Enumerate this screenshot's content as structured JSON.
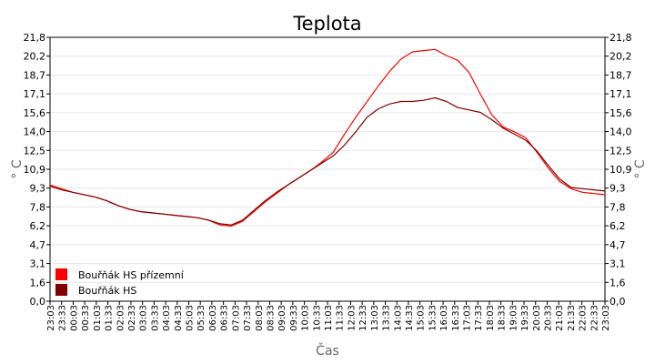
{
  "chart_data": {
    "type": "line",
    "title": "Teplota",
    "xlabel": "Čas",
    "ylabel": "° C",
    "ylabel_right": "° C",
    "ylim": [
      0,
      21.8
    ],
    "yticks": [
      "0,0",
      "1,6",
      "3,1",
      "4,7",
      "6,2",
      "7,8",
      "9,3",
      "10,9",
      "12,5",
      "14,0",
      "15,6",
      "17,1",
      "18,7",
      "20,2",
      "21,8"
    ],
    "xticks": [
      "23:03",
      "23:33",
      "00:03",
      "00:33",
      "01:03",
      "01:33",
      "02:03",
      "02:33",
      "03:03",
      "03:33",
      "04:03",
      "04:33",
      "05:03",
      "05:33",
      "06:03",
      "06:33",
      "07:03",
      "07:33",
      "08:03",
      "08:33",
      "09:03",
      "09:33",
      "10:03",
      "10:33",
      "11:03",
      "11:33",
      "12:03",
      "12:33",
      "13:03",
      "13:33",
      "14:03",
      "14:33",
      "15:03",
      "15:33",
      "16:03",
      "16:33",
      "17:03",
      "17:33",
      "18:03",
      "18:33",
      "19:03",
      "19:33",
      "20:03",
      "20:33",
      "21:03",
      "21:33",
      "22:03",
      "22:33",
      "23:03"
    ],
    "grid": true,
    "legend_position": "bottom-left",
    "series": [
      {
        "name": "Bouřňák HS přízemní",
        "color": "#ff0000",
        "values": [
          9.6,
          9.3,
          9.0,
          8.8,
          8.6,
          8.3,
          7.9,
          7.6,
          7.4,
          7.3,
          7.2,
          7.1,
          7.0,
          6.9,
          6.7,
          6.3,
          6.2,
          6.6,
          7.4,
          8.2,
          8.9,
          9.6,
          10.2,
          10.8,
          11.5,
          12.3,
          13.8,
          15.2,
          16.5,
          17.8,
          19.0,
          20.0,
          20.6,
          20.7,
          20.8,
          20.3,
          19.9,
          18.9,
          17.1,
          15.4,
          14.4,
          14.0,
          13.5,
          12.3,
          11.0,
          9.9,
          9.3,
          9.0,
          8.9,
          8.8
        ]
      },
      {
        "name": "Bouřňák HS",
        "color": "#800000",
        "values": [
          9.5,
          9.2,
          9.0,
          8.8,
          8.6,
          8.3,
          7.9,
          7.6,
          7.4,
          7.3,
          7.2,
          7.1,
          7.0,
          6.9,
          6.7,
          6.4,
          6.3,
          6.7,
          7.5,
          8.3,
          9.0,
          9.6,
          10.2,
          10.8,
          11.4,
          12.0,
          12.9,
          14.0,
          15.2,
          15.9,
          16.3,
          16.5,
          16.5,
          16.6,
          16.8,
          16.5,
          16.0,
          15.8,
          15.6,
          15.0,
          14.3,
          13.8,
          13.3,
          12.4,
          11.2,
          10.1,
          9.4,
          9.3,
          9.2,
          9.1
        ]
      }
    ]
  }
}
